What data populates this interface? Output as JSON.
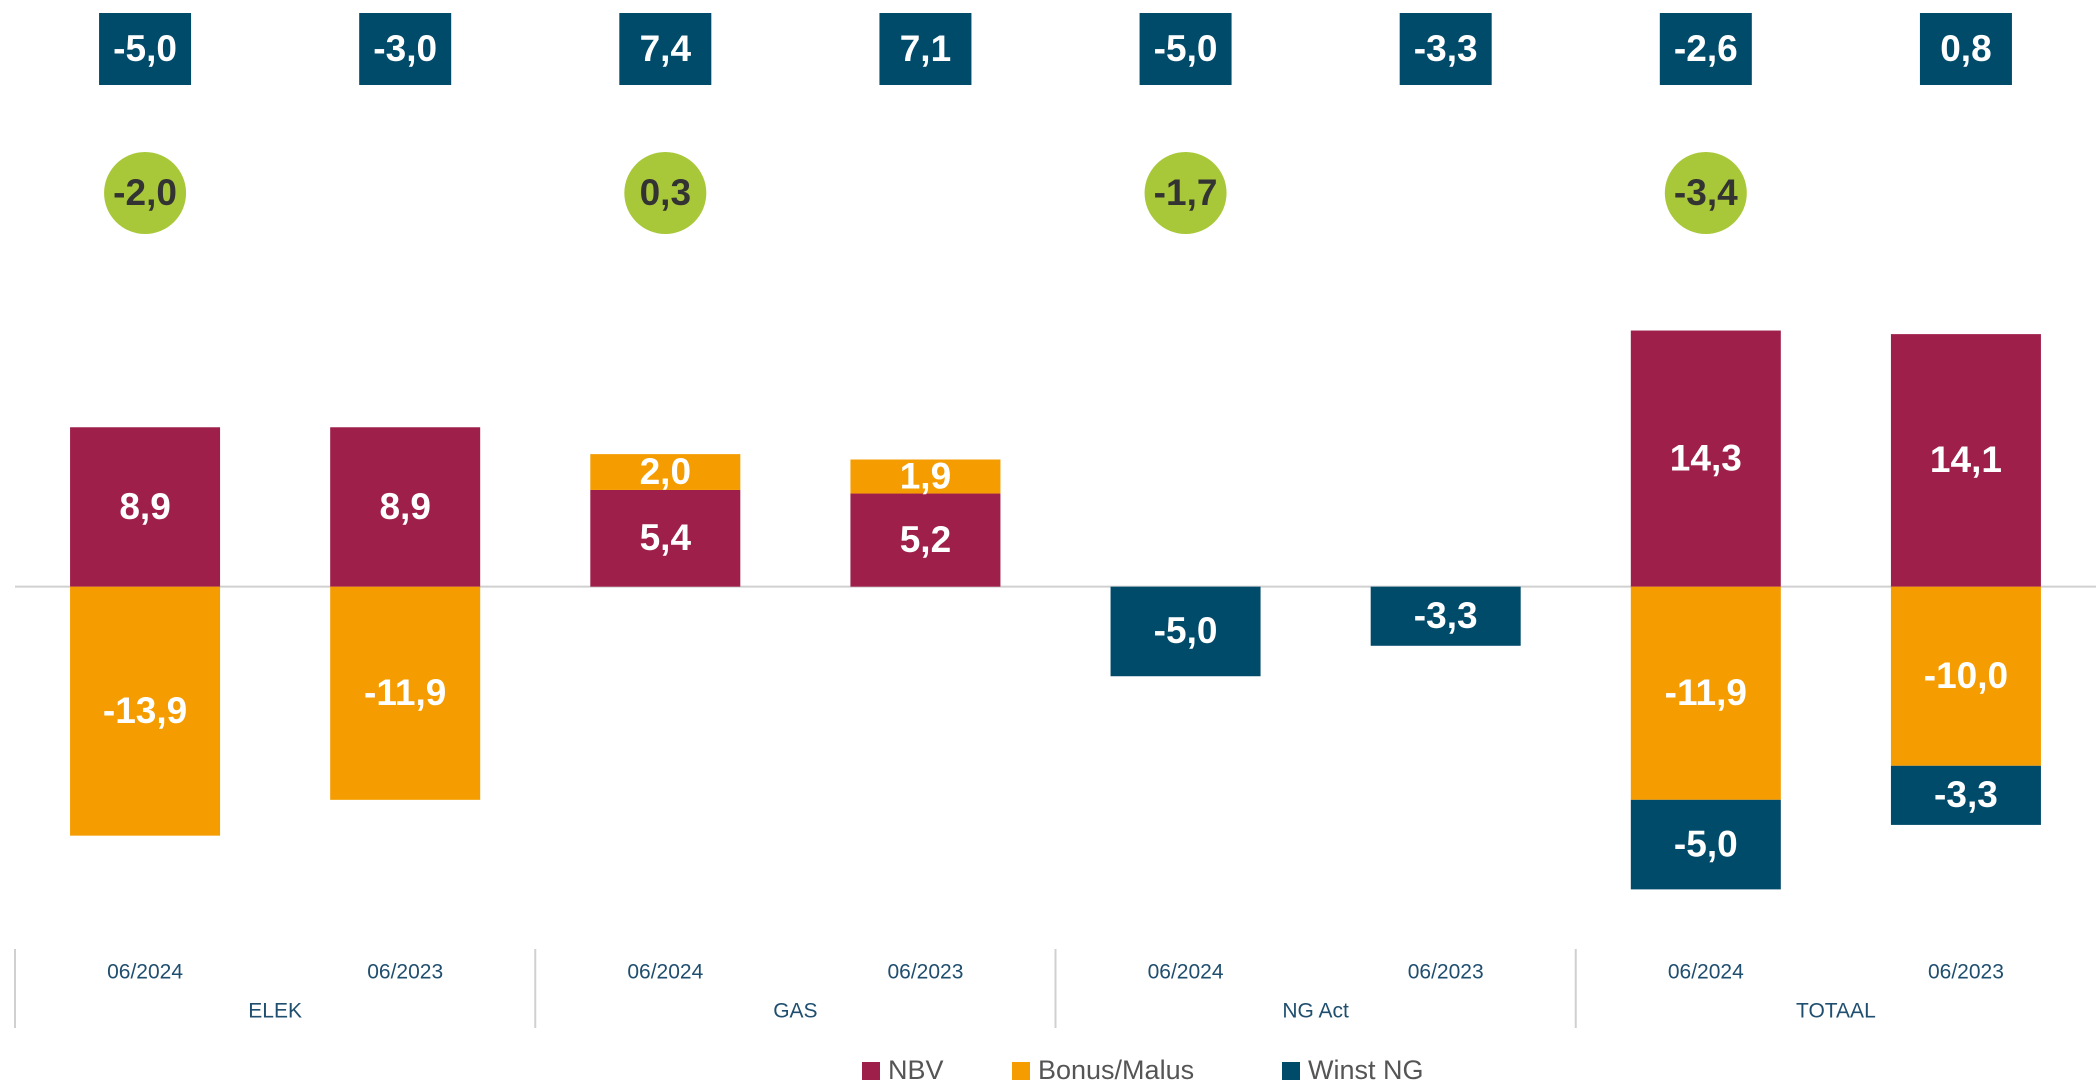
{
  "chart_data": {
    "type": "bar",
    "categories": [
      "06/2024",
      "06/2023",
      "06/2024",
      "06/2023",
      "06/2024",
      "06/2023",
      "06/2024",
      "06/2023"
    ],
    "groups": [
      "ELEK",
      "GAS",
      "NG Act",
      "TOTAAL"
    ],
    "series": [
      {
        "name": "NBV",
        "color": "#9e1f4a",
        "values": [
          8.9,
          8.9,
          5.4,
          5.2,
          null,
          null,
          14.3,
          14.1
        ],
        "value_labels": [
          "8,9",
          "8,9",
          "5,4",
          "5,2",
          null,
          null,
          "14,3",
          "14,1"
        ]
      },
      {
        "name": "Bonus/Malus",
        "color": "#f59c00",
        "values": [
          -13.9,
          -11.9,
          2.0,
          1.9,
          null,
          null,
          -11.9,
          -10.0
        ],
        "value_labels": [
          "-13,9",
          "-11,9",
          "2,0",
          "1,9",
          null,
          null,
          "-11,9",
          "-10,0"
        ]
      },
      {
        "name": "Winst NG",
        "color": "#004a6a",
        "values": [
          null,
          null,
          null,
          null,
          -5.0,
          -3.3,
          -5.0,
          -3.3
        ],
        "value_labels": [
          null,
          null,
          null,
          null,
          "-5,0",
          "-3,3",
          "-5,0",
          "-3,3"
        ]
      }
    ],
    "totals": {
      "color": "#004a6a",
      "values": [
        -5.0,
        -3.0,
        7.4,
        7.1,
        -5.0,
        -3.3,
        -2.6,
        0.8
      ],
      "value_labels": [
        "-5,0",
        "-3,0",
        "7,4",
        "7,1",
        "-5,0",
        "-3,3",
        "-2,6",
        "0,8"
      ]
    },
    "differences": {
      "color": "#a8c839",
      "values": [
        -2.0,
        0.3,
        -1.7,
        -3.4
      ],
      "value_labels": [
        "-2,0",
        "0,3",
        "-1,7",
        "-3,4"
      ]
    },
    "ylim": [
      -19,
      15
    ],
    "legend": "bottom"
  }
}
